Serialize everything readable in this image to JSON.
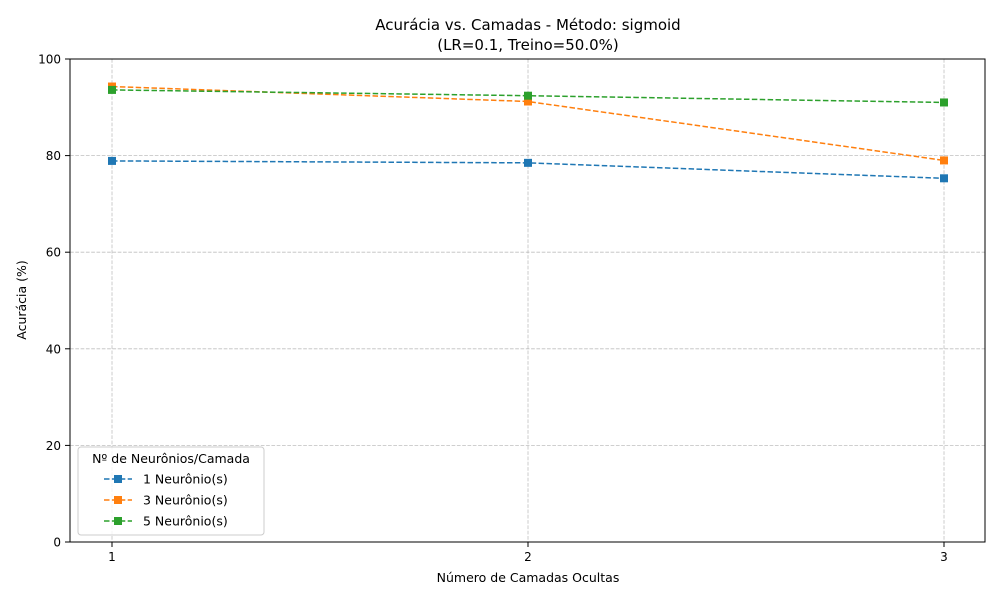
{
  "chart_data": {
    "type": "line",
    "title": "Acurácia vs. Camadas - Método: sigmoid",
    "subtitle": "(LR=0.1, Treino=50.0%)",
    "xlabel": "Número de Camadas Ocultas",
    "ylabel": "Acurácia (%)",
    "x": [
      1,
      2,
      3
    ],
    "x_tick_labels": [
      "1",
      "2",
      "3"
    ],
    "ylim": [
      0,
      100
    ],
    "y_ticks": [
      0,
      20,
      40,
      60,
      80,
      100
    ],
    "y_tick_labels": [
      "0",
      "20",
      "40",
      "60",
      "80",
      "100"
    ],
    "grid": true,
    "legend": {
      "title": "Nº de Neurônios/Camada",
      "placement": "lower-left"
    },
    "series": [
      {
        "name": "1 Neurônio(s)",
        "color": "#1f77b4",
        "marker": "square",
        "line_style": "dashed",
        "values": [
          78.9,
          78.5,
          75.3
        ]
      },
      {
        "name": "3 Neurônio(s)",
        "color": "#ff7f0e",
        "marker": "square",
        "line_style": "dashed",
        "values": [
          94.3,
          91.2,
          79.0
        ]
      },
      {
        "name": "5 Neurônio(s)",
        "color": "#2ca02c",
        "marker": "square",
        "line_style": "dashed",
        "values": [
          93.6,
          92.4,
          91.0
        ]
      }
    ]
  }
}
